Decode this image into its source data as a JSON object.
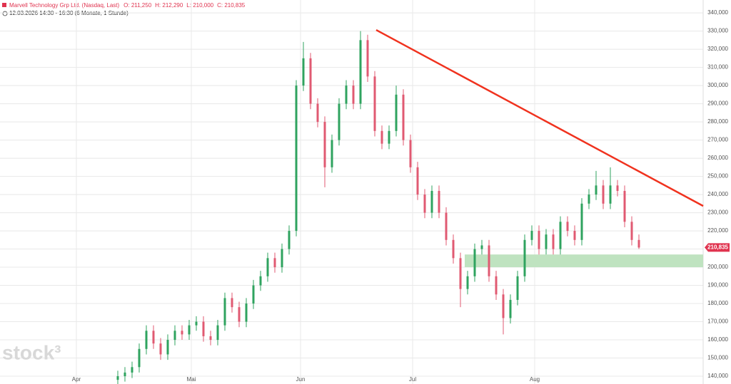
{
  "chart_data": {
    "type": "candlestick",
    "title": "Marvell Technology Grp Ltd. (Nasdaq, Last)",
    "header_stats": [
      "O: 211,250",
      "H: 212,290",
      "L: 210,000",
      "C: 210,835"
    ],
    "subtitle": "12.03.2026 14:30 - 16:30  (6 Monate, 1 Stunde)",
    "watermark": "stock³",
    "open": [
      138,
      140,
      142,
      145,
      155,
      165,
      158,
      152,
      160,
      165,
      163,
      168,
      170,
      162,
      160,
      168,
      183,
      178,
      170,
      180,
      190,
      195,
      205,
      200,
      210,
      220,
      300,
      315,
      290,
      280,
      255,
      270,
      290,
      300,
      290,
      325,
      305,
      275,
      268,
      275,
      295,
      270,
      255,
      240,
      230,
      242,
      230,
      215,
      205,
      188,
      195,
      210,
      212,
      195,
      185,
      172,
      182,
      195,
      215,
      220,
      210,
      218,
      210,
      225,
      220,
      215,
      235,
      240,
      245,
      235,
      245,
      242,
      225,
      215
    ],
    "high": [
      143,
      145,
      148,
      158,
      168,
      168,
      161,
      163,
      168,
      168,
      171,
      173,
      173,
      165,
      171,
      186,
      186,
      181,
      183,
      193,
      198,
      208,
      208,
      213,
      223,
      303,
      324,
      318,
      293,
      283,
      273,
      293,
      303,
      303,
      330,
      328,
      308,
      278,
      278,
      300,
      298,
      273,
      258,
      243,
      245,
      245,
      233,
      218,
      208,
      198,
      213,
      215,
      215,
      198,
      188,
      185,
      198,
      218,
      223,
      223,
      221,
      221,
      228,
      228,
      223,
      238,
      243,
      253,
      248,
      255,
      248,
      245,
      228,
      218
    ],
    "low": [
      135,
      137,
      139,
      142,
      152,
      155,
      149,
      149,
      157,
      160,
      160,
      165,
      159,
      157,
      157,
      165,
      175,
      167,
      167,
      177,
      187,
      192,
      197,
      197,
      207,
      217,
      297,
      287,
      277,
      244,
      252,
      267,
      287,
      287,
      287,
      302,
      272,
      265,
      265,
      272,
      267,
      252,
      237,
      227,
      227,
      227,
      212,
      202,
      178,
      185,
      192,
      207,
      192,
      182,
      163,
      169,
      179,
      192,
      212,
      207,
      207,
      207,
      207,
      217,
      212,
      212,
      232,
      237,
      232,
      232,
      239,
      222,
      212,
      210
    ],
    "close": [
      140,
      142,
      145,
      155,
      165,
      158,
      152,
      160,
      165,
      163,
      168,
      170,
      162,
      160,
      168,
      183,
      178,
      170,
      180,
      190,
      195,
      205,
      200,
      210,
      220,
      300,
      315,
      290,
      280,
      255,
      270,
      290,
      300,
      290,
      325,
      305,
      275,
      268,
      275,
      295,
      270,
      255,
      240,
      230,
      242,
      230,
      215,
      205,
      188,
      195,
      210,
      212,
      195,
      185,
      172,
      182,
      195,
      215,
      220,
      210,
      218,
      210,
      225,
      220,
      215,
      235,
      240,
      245,
      235,
      245,
      242,
      225,
      215,
      210.835
    ],
    "up_color": "#2fa35f",
    "down_color": "#e05a72",
    "xlim": [
      -16.5,
      82
    ],
    "xticks": [
      {
        "value": -5.8,
        "label": "Apr"
      },
      {
        "value": 10.3,
        "label": "Mai"
      },
      {
        "value": 25.6,
        "label": "Jun"
      },
      {
        "value": 41.3,
        "label": "Jul"
      },
      {
        "value": 58.4,
        "label": "Aug"
      }
    ],
    "ylim": [
      135.7,
      347.1
    ],
    "yticks": [
      {
        "value": 140,
        "label": "140,000"
      },
      {
        "value": 150,
        "label": "150,000"
      },
      {
        "value": 160,
        "label": "160,000"
      },
      {
        "value": 170,
        "label": "170,000"
      },
      {
        "value": 180,
        "label": "180,000"
      },
      {
        "value": 190,
        "label": "190,000"
      },
      {
        "value": 200,
        "label": "200,000"
      },
      {
        "value": 210,
        "label": "210,000"
      },
      {
        "value": 220,
        "label": "220,000"
      },
      {
        "value": 230,
        "label": "230,000"
      },
      {
        "value": 240,
        "label": "240,000"
      },
      {
        "value": 250,
        "label": "250,000"
      },
      {
        "value": 260,
        "label": "260,000"
      },
      {
        "value": 270,
        "label": "270,000"
      },
      {
        "value": 280,
        "label": "280,000"
      },
      {
        "value": 290,
        "label": "290,000"
      },
      {
        "value": 300,
        "label": "300,000"
      },
      {
        "value": 310,
        "label": "310,000"
      },
      {
        "value": 320,
        "label": "320,000"
      },
      {
        "value": 330,
        "label": "330,000"
      },
      {
        "value": 340,
        "label": "340,000"
      }
    ],
    "grid": true,
    "last_price": {
      "value": 210.835,
      "label": "210,835",
      "color": "#e0334f"
    },
    "trendline": {
      "x": [
        36.2,
        82
      ],
      "y": [
        330.6,
        233.7
      ],
      "color": "#f0321e"
    },
    "zone": {
      "x": [
        48.6,
        82
      ],
      "y": [
        200,
        207
      ],
      "color": "#bfe3c0"
    }
  }
}
